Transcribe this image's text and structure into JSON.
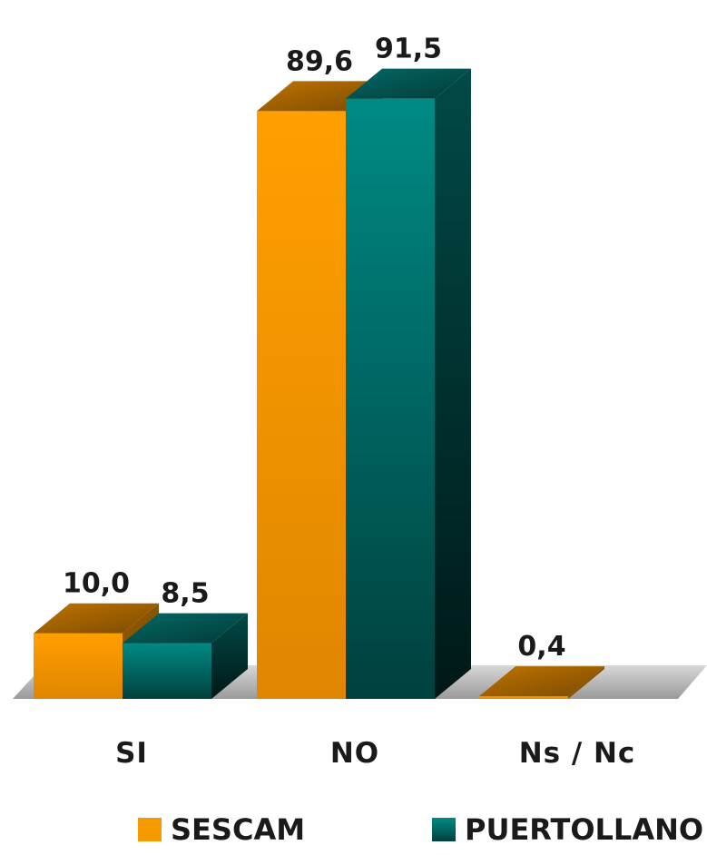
{
  "chart_data": {
    "type": "bar",
    "categories": [
      "SI",
      "NO",
      "Ns / Nc"
    ],
    "series": [
      {
        "name": "SESCAM",
        "values": [
          10.0,
          89.6,
          0.4
        ],
        "labels": [
          "10,0",
          "89,6",
          "0,4"
        ],
        "color": "#f59a00"
      },
      {
        "name": "PUERTOLLANO",
        "values": [
          8.5,
          91.5,
          null
        ],
        "labels": [
          "8,5",
          "91,5",
          ""
        ],
        "color": "#008a84"
      }
    ],
    "ylim": [
      0,
      100
    ],
    "grid": false,
    "legend_position": "bottom",
    "style": "3d"
  },
  "legend": {
    "sescam_label": "SESCAM",
    "puertollano_label": "PUERTOLLANO"
  }
}
